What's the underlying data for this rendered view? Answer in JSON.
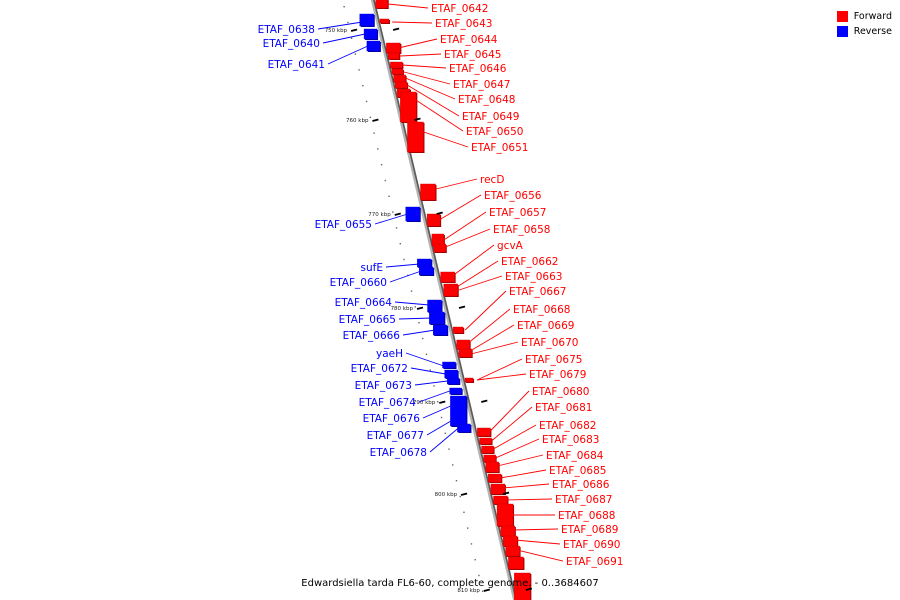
{
  "legend": {
    "forward": {
      "label": "Forward",
      "color": "#ff0000"
    },
    "reverse": {
      "label": "Reverse",
      "color": "#0000ff"
    }
  },
  "caption": "Edwardsiella tarda FL6-60, complete genome. - 0..3684607",
  "ticks": [
    "750 kbp",
    "760 kbp",
    "770 kbp",
    "780 kbp",
    "790 kbp",
    "800 kbp",
    "810 kbp"
  ],
  "forward_labels": [
    "ETAF_0642",
    "ETAF_0643",
    "ETAF_0644",
    "ETAF_0645",
    "ETAF_0646",
    "ETAF_0647",
    "ETAF_0648",
    "ETAF_0649",
    "ETAF_0650",
    "ETAF_0651",
    "recD",
    "ETAF_0656",
    "ETAF_0657",
    "ETAF_0658",
    "gcvA",
    "ETAF_0662",
    "ETAF_0663",
    "ETAF_0667",
    "ETAF_0668",
    "ETAF_0669",
    "ETAF_0670",
    "ETAF_0675",
    "ETAF_0679",
    "ETAF_0680",
    "ETAF_0681",
    "ETAF_0682",
    "ETAF_0683",
    "ETAF_0684",
    "ETAF_0685",
    "ETAF_0686",
    "ETAF_0687",
    "ETAF_0688",
    "ETAF_0689",
    "ETAF_0690",
    "ETAF_0691"
  ],
  "reverse_labels": [
    "ETAF_0638",
    "ETAF_0640",
    "ETAF_0641",
    "ETAF_0655",
    "sufE",
    "ETAF_0660",
    "ETAF_0664",
    "ETAF_0665",
    "ETAF_0666",
    "yaeH",
    "ETAF_0672",
    "ETAF_0673",
    "ETAF_0674",
    "ETAF_0676",
    "ETAF_0677",
    "ETAF_0678"
  ]
}
